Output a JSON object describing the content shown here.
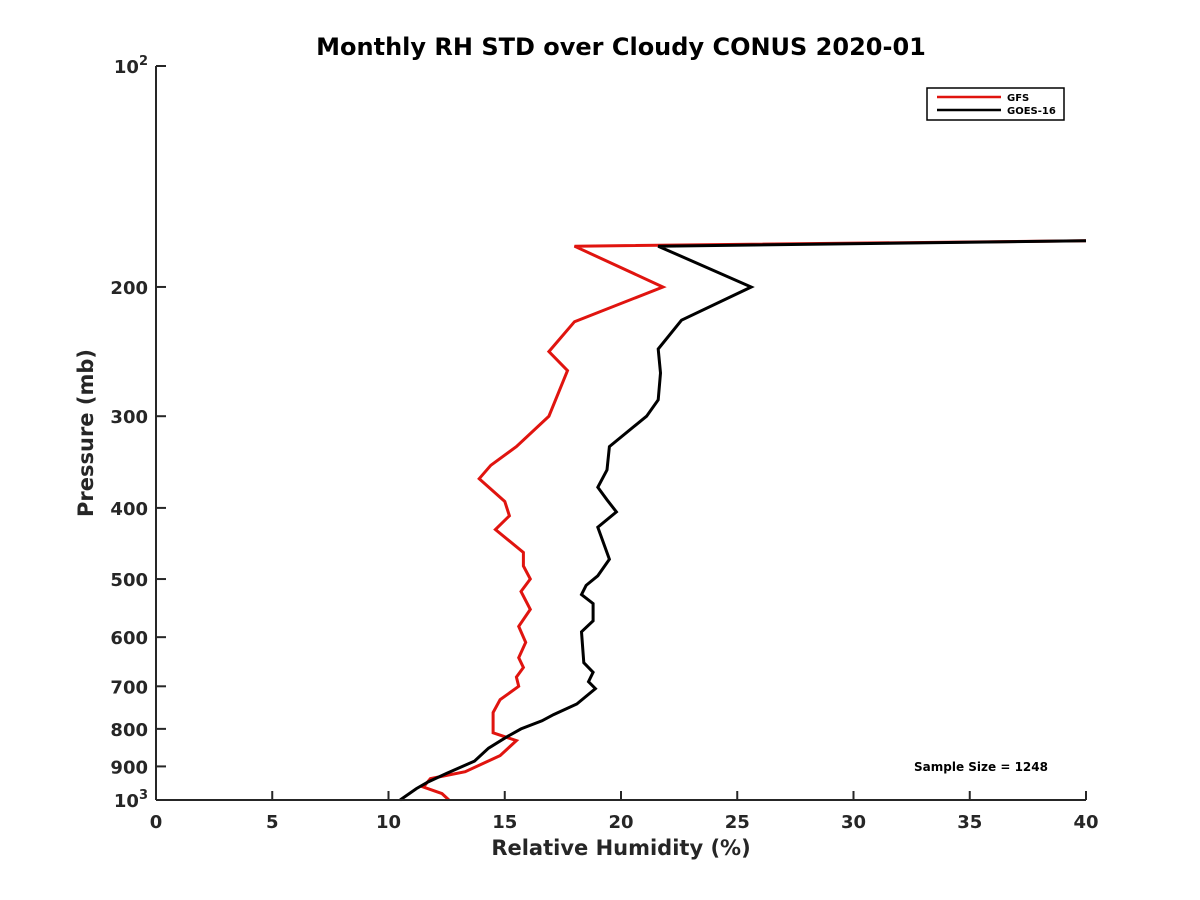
{
  "chart_data": {
    "type": "line",
    "title": "Monthly RH STD over Cloudy CONUS  2020-01",
    "xlabel": "Relative Humidity (%)",
    "ylabel": "Pressure (mb)",
    "xlim": [
      0,
      40
    ],
    "ylim": [
      100,
      1000
    ],
    "y_scale": "log",
    "y_reversed": true,
    "grid": false,
    "legend_position": "top-right",
    "xticks": [
      "0",
      "5",
      "10",
      "15",
      "20",
      "25",
      "30",
      "35",
      "40"
    ],
    "xtick_values": [
      0,
      5,
      10,
      15,
      20,
      25,
      30,
      35,
      40
    ],
    "yticks": [
      {
        "value": 100,
        "base": "10",
        "exp": "2"
      },
      {
        "value": 200,
        "label": "200"
      },
      {
        "value": 300,
        "label": "300"
      },
      {
        "value": 400,
        "label": "400"
      },
      {
        "value": 500,
        "label": "500"
      },
      {
        "value": 600,
        "label": "600"
      },
      {
        "value": 700,
        "label": "700"
      },
      {
        "value": 800,
        "label": "800"
      },
      {
        "value": 900,
        "label": "900"
      },
      {
        "value": 1000,
        "base": "10",
        "exp": "3"
      }
    ],
    "annotation": "Sample Size = 1248",
    "series": [
      {
        "name": "GFS",
        "color": "#e0140f",
        "points": [
          {
            "x": 40,
            "y": 173
          },
          {
            "x": 18.0,
            "y": 176
          },
          {
            "x": 21.8,
            "y": 200
          },
          {
            "x": 18.0,
            "y": 223
          },
          {
            "x": 16.9,
            "y": 245
          },
          {
            "x": 17.7,
            "y": 260
          },
          {
            "x": 16.9,
            "y": 300
          },
          {
            "x": 15.5,
            "y": 330
          },
          {
            "x": 14.4,
            "y": 350
          },
          {
            "x": 13.9,
            "y": 365
          },
          {
            "x": 15.0,
            "y": 392
          },
          {
            "x": 15.2,
            "y": 410
          },
          {
            "x": 14.6,
            "y": 428
          },
          {
            "x": 15.8,
            "y": 460
          },
          {
            "x": 15.8,
            "y": 480
          },
          {
            "x": 16.1,
            "y": 500
          },
          {
            "x": 15.7,
            "y": 520
          },
          {
            "x": 16.1,
            "y": 550
          },
          {
            "x": 15.6,
            "y": 580
          },
          {
            "x": 15.9,
            "y": 610
          },
          {
            "x": 15.6,
            "y": 640
          },
          {
            "x": 15.8,
            "y": 660
          },
          {
            "x": 15.5,
            "y": 680
          },
          {
            "x": 15.6,
            "y": 700
          },
          {
            "x": 14.8,
            "y": 730
          },
          {
            "x": 14.5,
            "y": 760
          },
          {
            "x": 14.5,
            "y": 810
          },
          {
            "x": 15.5,
            "y": 830
          },
          {
            "x": 14.8,
            "y": 870
          },
          {
            "x": 13.3,
            "y": 915
          },
          {
            "x": 11.8,
            "y": 935
          },
          {
            "x": 11.5,
            "y": 960
          },
          {
            "x": 12.3,
            "y": 980
          },
          {
            "x": 12.6,
            "y": 1000
          }
        ]
      },
      {
        "name": "GOES-16",
        "color": "#000000",
        "points": [
          {
            "x": 40,
            "y": 173
          },
          {
            "x": 21.6,
            "y": 176
          },
          {
            "x": 25.6,
            "y": 200
          },
          {
            "x": 22.6,
            "y": 222
          },
          {
            "x": 21.6,
            "y": 243
          },
          {
            "x": 21.7,
            "y": 262
          },
          {
            "x": 21.6,
            "y": 285
          },
          {
            "x": 21.1,
            "y": 300
          },
          {
            "x": 19.5,
            "y": 330
          },
          {
            "x": 19.4,
            "y": 355
          },
          {
            "x": 19.0,
            "y": 375
          },
          {
            "x": 19.4,
            "y": 390
          },
          {
            "x": 19.8,
            "y": 405
          },
          {
            "x": 19.0,
            "y": 425
          },
          {
            "x": 19.5,
            "y": 470
          },
          {
            "x": 19.0,
            "y": 495
          },
          {
            "x": 18.5,
            "y": 510
          },
          {
            "x": 18.3,
            "y": 525
          },
          {
            "x": 18.8,
            "y": 540
          },
          {
            "x": 18.8,
            "y": 570
          },
          {
            "x": 18.3,
            "y": 590
          },
          {
            "x": 18.4,
            "y": 650
          },
          {
            "x": 18.8,
            "y": 670
          },
          {
            "x": 18.6,
            "y": 690
          },
          {
            "x": 18.9,
            "y": 705
          },
          {
            "x": 18.1,
            "y": 740
          },
          {
            "x": 17.1,
            "y": 765
          },
          {
            "x": 16.6,
            "y": 780
          },
          {
            "x": 15.7,
            "y": 800
          },
          {
            "x": 15.1,
            "y": 820
          },
          {
            "x": 14.3,
            "y": 850
          },
          {
            "x": 13.7,
            "y": 885
          },
          {
            "x": 12.5,
            "y": 920
          },
          {
            "x": 11.7,
            "y": 945
          },
          {
            "x": 11.2,
            "y": 965
          },
          {
            "x": 10.5,
            "y": 1000
          }
        ]
      }
    ]
  }
}
